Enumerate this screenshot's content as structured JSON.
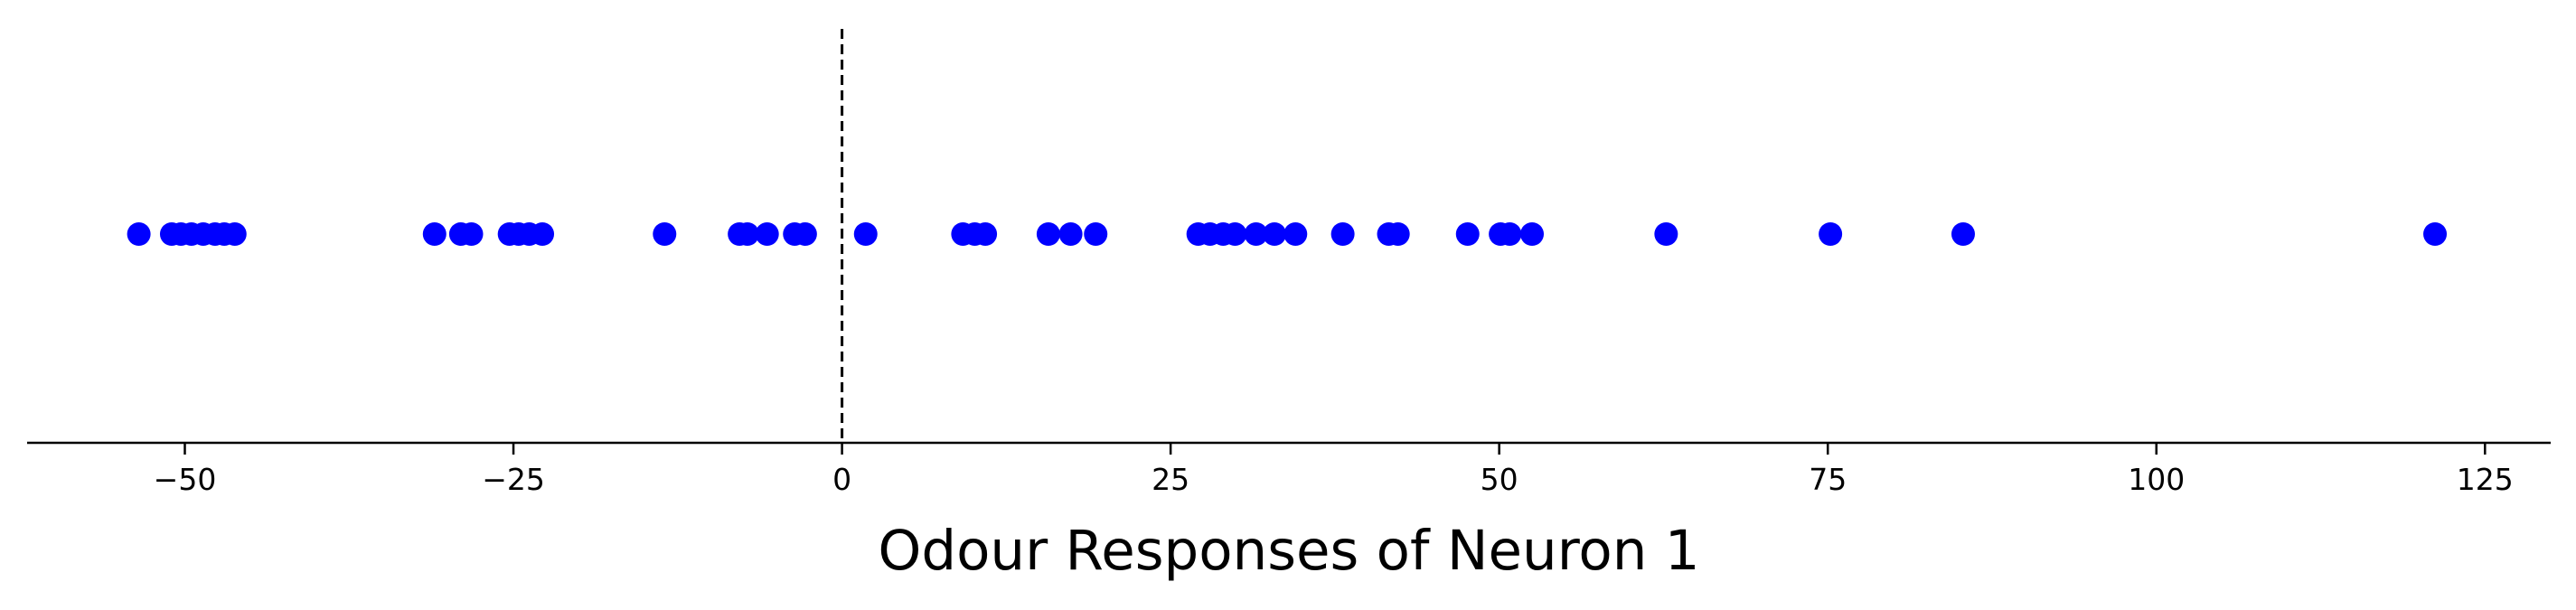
{
  "chart_data": {
    "type": "scatter",
    "title": "",
    "xlabel": "Odour Responses of Neuron 1",
    "ylabel": "",
    "xlim": [
      -62,
      130
    ],
    "xticks": [
      -50,
      -25,
      0,
      25,
      50,
      75,
      100,
      125
    ],
    "xtick_labels": [
      "−50",
      "−25",
      "0",
      "25",
      "50",
      "75",
      "100",
      "125"
    ],
    "reference_line": {
      "x": 0,
      "style": "dashed",
      "color": "#000000"
    },
    "point_color": "#0000ff",
    "grid": false,
    "series": [
      {
        "values": [
          -53.5,
          -51,
          -50.3,
          -49.5,
          -48.6,
          -47.7,
          -47,
          -46.2,
          -31,
          -29,
          -28.2,
          -25.3,
          -24.6,
          -23.8,
          -22.8,
          -13.5,
          -7.8,
          -7.2,
          -5.7,
          -3.6,
          -2.8,
          1.8,
          9.2,
          10.1,
          10.9,
          15.7,
          17.4,
          19.3,
          27.1,
          28,
          29,
          29.9,
          31.5,
          32.9,
          34.5,
          38.1,
          41.6,
          42.3,
          47.6,
          50.1,
          50.8,
          52.5,
          62.7,
          75.2,
          85.3,
          121.2
        ]
      }
    ]
  }
}
